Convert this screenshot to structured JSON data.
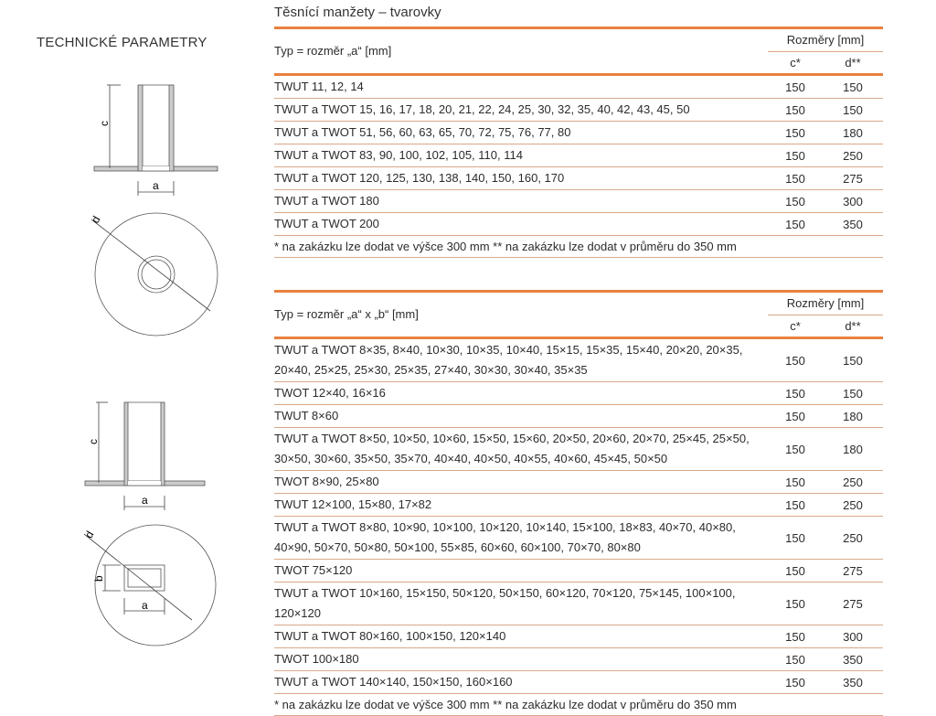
{
  "side_title": "TECHNICKÉ PARAMETRY",
  "figures": {
    "label_a": "a",
    "label_b": "b",
    "label_c": "c",
    "label_d": "d"
  },
  "title": "Těsnící manžety – tvarovky",
  "accent_color": "#e9803f",
  "table1": {
    "type_header": "Typ = rozměr „a“ [mm]",
    "dims_header": "Rozměry [mm]",
    "col_c": "c*",
    "col_d": "d**",
    "rows": [
      {
        "type": "TWUT 11, 12, 14",
        "c": "150",
        "d": "150"
      },
      {
        "type": "TWUT a TWOT 15, 16, 17, 18, 20, 21, 22, 24, 25, 30, 32, 35, 40, 42, 43, 45, 50",
        "c": "150",
        "d": "150"
      },
      {
        "type": "TWUT a TWOT 51, 56, 60, 63, 65, 70, 72, 75, 76, 77, 80",
        "c": "150",
        "d": "180"
      },
      {
        "type": "TWUT a TWOT 83, 90, 100, 102, 105, 110, 114",
        "c": "150",
        "d": "250"
      },
      {
        "type": "TWUT a TWOT 120, 125, 130, 138, 140, 150, 160, 170",
        "c": "150",
        "d": "275"
      },
      {
        "type": "TWUT a TWOT 180",
        "c": "150",
        "d": "300"
      },
      {
        "type": "TWUT a TWOT 200",
        "c": "150",
        "d": "350"
      }
    ],
    "footnote": "* na zakázku lze dodat ve výšce 300 mm   ** na zakázku lze dodat v průměru do 350 mm"
  },
  "table2": {
    "type_header": "Typ = rozměr „a“ x „b“  [mm]",
    "dims_header": "Rozměry [mm]",
    "col_c": "c*",
    "col_d": "d**",
    "rows": [
      {
        "type": "TWUT a TWOT 8×35, 8×40, 10×30, 10×35, 10×40, 15×15, 15×35, 15×40, 20×20, 20×35, 20×40, 25×25, 25×30, 25×35, 27×40, 30×30, 30×40, 35×35",
        "c": "150",
        "d": "150"
      },
      {
        "type": "TWOT 12×40, 16×16",
        "c": "150",
        "d": "150"
      },
      {
        "type": "TWUT 8×60",
        "c": "150",
        "d": "180"
      },
      {
        "type": "TWUT a TWOT 8×50, 10×50, 10×60, 15×50, 15×60, 20×50, 20×60, 20×70, 25×45, 25×50, 30×50, 30×60, 35×50, 35×70, 40×40, 40×50, 40×55, 40×60, 45×45, 50×50",
        "c": "150",
        "d": "180"
      },
      {
        "type": "TWOT 8×90, 25×80",
        "c": "150",
        "d": "250"
      },
      {
        "type": "TWUT 12×100, 15×80, 17×82",
        "c": "150",
        "d": "250"
      },
      {
        "type": "TWUT a TWOT 8×80, 10×90, 10×100, 10×120, 10×140, 15×100, 18×83, 40×70, 40×80, 40×90, 50×70, 50×80, 50×100, 55×85, 60×60, 60×100, 70×70, 80×80",
        "c": "150",
        "d": "250"
      },
      {
        "type": "TWOT 75×120",
        "c": "150",
        "d": "275"
      },
      {
        "type": "TWUT a TWOT 10×160, 15×150, 50×120, 50×150, 60×120, 70×120, 75×145, 100×100, 120×120",
        "c": "150",
        "d": "275"
      },
      {
        "type": "TWUT a TWOT 80×160, 100×150, 120×140",
        "c": "150",
        "d": "300"
      },
      {
        "type": "TWOT 100×180",
        "c": "150",
        "d": "350"
      },
      {
        "type": "TWUT a TWOT 140×140, 150×150, 160×160",
        "c": "150",
        "d": "350"
      }
    ],
    "footnote": "* na zakázku lze dodat ve výšce 300 mm   ** na zakázku lze dodat v průměru do 350 mm"
  }
}
